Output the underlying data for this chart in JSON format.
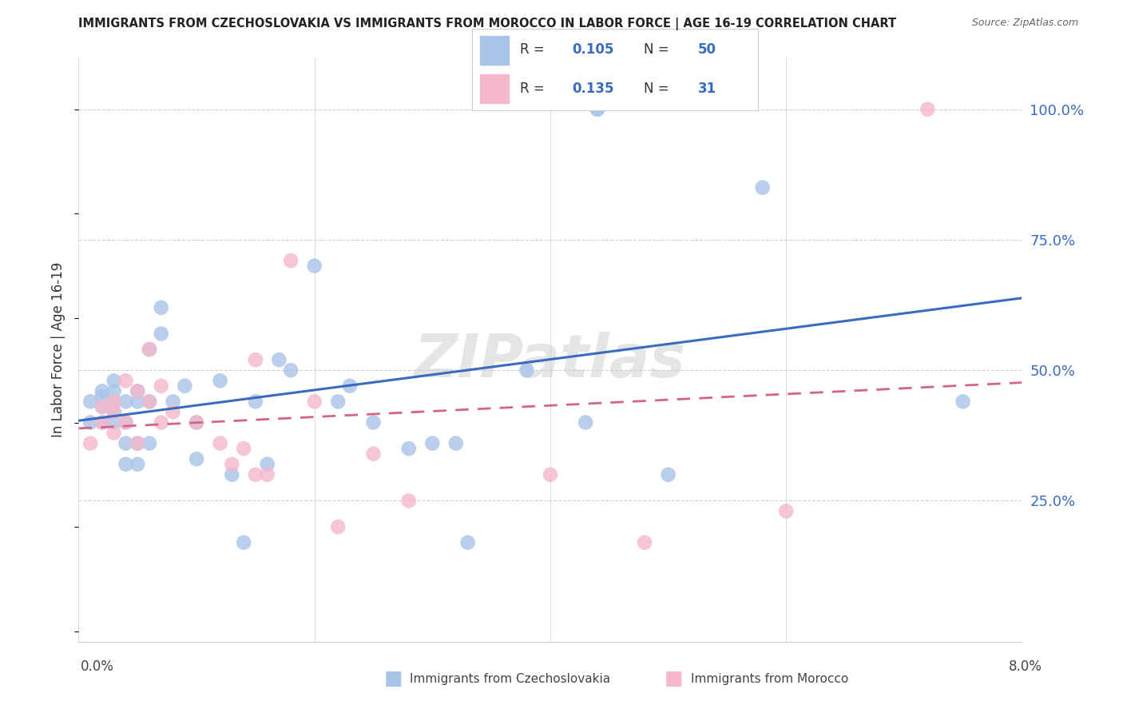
{
  "title": "IMMIGRANTS FROM CZECHOSLOVAKIA VS IMMIGRANTS FROM MOROCCO IN LABOR FORCE | AGE 16-19 CORRELATION CHART",
  "source": "Source: ZipAtlas.com",
  "ylabel": "In Labor Force | Age 16-19",
  "xlim": [
    0.0,
    0.08
  ],
  "ylim": [
    -0.02,
    1.1
  ],
  "watermark": "ZIPatlas",
  "blue_R": 0.105,
  "blue_N": 50,
  "pink_R": 0.135,
  "pink_N": 31,
  "blue_color": "#a8c4e8",
  "pink_color": "#f5b8ca",
  "blue_line_color": "#3a6bbf",
  "pink_line_color": "#d4648a",
  "legend_label_blue": "Immigrants from Czechoslovakia",
  "legend_label_pink": "Immigrants from Morocco",
  "blue_x": [
    0.001,
    0.001,
    0.002,
    0.002,
    0.002,
    0.002,
    0.003,
    0.003,
    0.003,
    0.003,
    0.003,
    0.004,
    0.004,
    0.004,
    0.004,
    0.005,
    0.005,
    0.005,
    0.005,
    0.006,
    0.006,
    0.006,
    0.007,
    0.007,
    0.008,
    0.009,
    0.01,
    0.01,
    0.012,
    0.013,
    0.014,
    0.015,
    0.016,
    0.017,
    0.018,
    0.02,
    0.022,
    0.023,
    0.025,
    0.028,
    0.03,
    0.032,
    0.033,
    0.038,
    0.043,
    0.044,
    0.044,
    0.05,
    0.058,
    0.075
  ],
  "blue_y": [
    0.4,
    0.44,
    0.4,
    0.43,
    0.45,
    0.46,
    0.4,
    0.42,
    0.44,
    0.46,
    0.48,
    0.32,
    0.36,
    0.4,
    0.44,
    0.32,
    0.36,
    0.44,
    0.46,
    0.36,
    0.44,
    0.54,
    0.57,
    0.62,
    0.44,
    0.47,
    0.33,
    0.4,
    0.48,
    0.3,
    0.17,
    0.44,
    0.32,
    0.52,
    0.5,
    0.7,
    0.44,
    0.47,
    0.4,
    0.35,
    0.36,
    0.36,
    0.17,
    0.5,
    0.4,
    1.0,
    1.0,
    0.3,
    0.85,
    0.44
  ],
  "pink_x": [
    0.001,
    0.002,
    0.002,
    0.003,
    0.003,
    0.003,
    0.004,
    0.004,
    0.005,
    0.005,
    0.006,
    0.006,
    0.007,
    0.007,
    0.008,
    0.01,
    0.012,
    0.013,
    0.014,
    0.015,
    0.015,
    0.016,
    0.018,
    0.02,
    0.022,
    0.025,
    0.028,
    0.04,
    0.048,
    0.06,
    0.072
  ],
  "pink_y": [
    0.36,
    0.4,
    0.43,
    0.38,
    0.42,
    0.44,
    0.4,
    0.48,
    0.36,
    0.46,
    0.44,
    0.54,
    0.4,
    0.47,
    0.42,
    0.4,
    0.36,
    0.32,
    0.35,
    0.3,
    0.52,
    0.3,
    0.71,
    0.44,
    0.2,
    0.34,
    0.25,
    0.3,
    0.17,
    0.23,
    1.0
  ],
  "background_color": "#ffffff",
  "grid_color": "#d0d0d0",
  "ytick_vals": [
    0.25,
    0.5,
    0.75,
    1.0
  ],
  "ytick_labels": [
    "25.0%",
    "50.0%",
    "75.0%",
    "100.0%"
  ]
}
